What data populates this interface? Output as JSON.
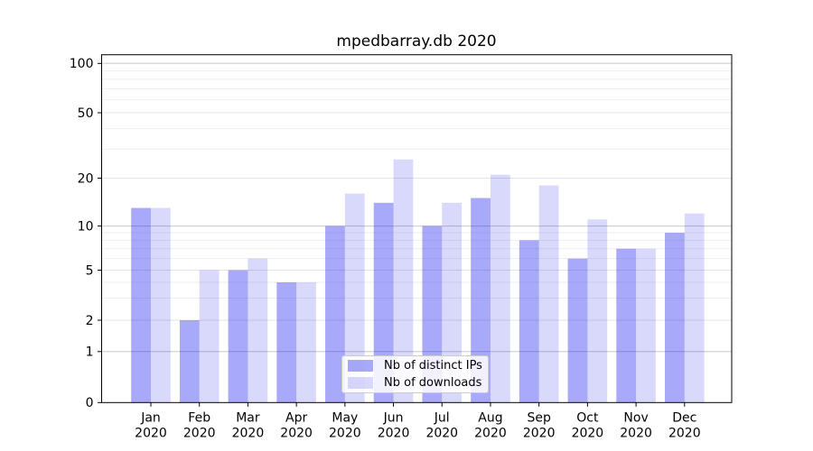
{
  "chart_data": {
    "type": "bar",
    "title": "mpedbarray.db 2020",
    "xlabel": "",
    "ylabel": "",
    "categories": [
      "Jan",
      "Feb",
      "Mar",
      "Apr",
      "May",
      "Jun",
      "Jul",
      "Aug",
      "Sep",
      "Oct",
      "Nov",
      "Dec"
    ],
    "x_tick_second_line": "2020",
    "series": [
      {
        "name": "Nb of distinct IPs",
        "color": "rgba(30,30,240,0.38)",
        "values": [
          13,
          2,
          5,
          4,
          10,
          14,
          10,
          15,
          8,
          6,
          7,
          9
        ]
      },
      {
        "name": "Nb of downloads",
        "color": "rgba(30,30,240,0.17)",
        "values": [
          13,
          5,
          6,
          4,
          16,
          26,
          14,
          21,
          18,
          11,
          7,
          12
        ]
      }
    ],
    "yscale": "symlog",
    "ylim": [
      0,
      112
    ],
    "y_major_ticks": [
      0,
      1,
      2,
      5,
      10,
      20,
      50,
      100
    ],
    "y_minor_gridlines": [
      3,
      4,
      6,
      7,
      8,
      9,
      30,
      40,
      60,
      70,
      80,
      90
    ],
    "decade_gridlines": [
      1,
      10,
      100
    ],
    "grid": true,
    "legend_position": "lower center",
    "colors": {
      "grid_decade": "#c8c8c8",
      "grid_labeled": "#e3e3e3",
      "grid_minor": "#eeeeee",
      "spine": "#000000",
      "legend_border": "#cccccc"
    },
    "scale_anchors": [
      [
        0,
        446.3
      ],
      [
        1,
        389.8
      ],
      [
        2,
        355.0
      ],
      [
        5,
        299.5
      ],
      [
        10,
        250.6
      ],
      [
        20,
        197.5
      ],
      [
        50,
        125.0
      ],
      [
        100,
        70.3
      ]
    ]
  }
}
